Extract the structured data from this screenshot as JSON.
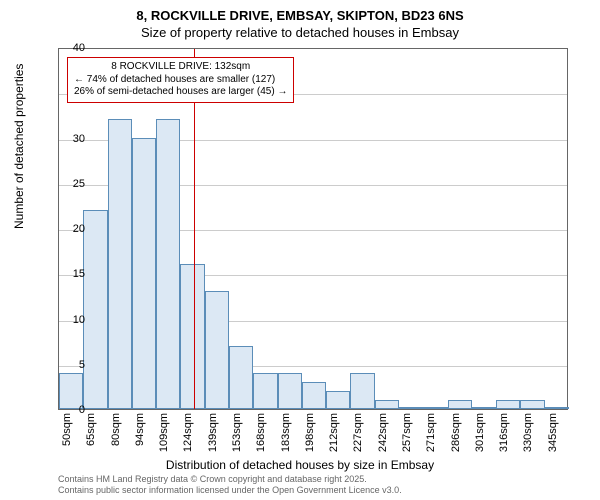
{
  "title_line1": "8, ROCKVILLE DRIVE, EMBSAY, SKIPTON, BD23 6NS",
  "title_line2": "Size of property relative to detached houses in Embsay",
  "ylabel": "Number of detached properties",
  "xlabel": "Distribution of detached houses by size in Embsay",
  "chart": {
    "type": "histogram",
    "ylim": [
      0,
      40
    ],
    "yticks": [
      0,
      5,
      10,
      15,
      20,
      25,
      30,
      35,
      40
    ],
    "xticks": [
      "50sqm",
      "65sqm",
      "80sqm",
      "94sqm",
      "109sqm",
      "124sqm",
      "139sqm",
      "153sqm",
      "168sqm",
      "183sqm",
      "198sqm",
      "212sqm",
      "227sqm",
      "242sqm",
      "257sqm",
      "271sqm",
      "286sqm",
      "301sqm",
      "316sqm",
      "330sqm",
      "345sqm"
    ],
    "values": [
      4,
      22,
      32,
      30,
      32,
      16,
      13,
      7,
      4,
      4,
      3,
      2,
      4,
      1,
      0,
      0,
      1,
      0,
      1,
      1,
      0
    ],
    "bar_fill": "#dce8f4",
    "bar_border": "#5b8db8",
    "grid_color": "#cccccc",
    "bg": "#ffffff",
    "border": "#666666",
    "marker_value": 132,
    "marker_color": "#cc0000",
    "bar_count": 21,
    "x_min": 50,
    "x_max": 360
  },
  "annotation": {
    "line1": "8 ROCKVILLE DRIVE: 132sqm",
    "line2": "← 74% of detached houses are smaller (127)",
    "line3": "26% of semi-detached houses are larger (45) →"
  },
  "footer": {
    "line1": "Contains HM Land Registry data © Crown copyright and database right 2025.",
    "line2": "Contains public sector information licensed under the Open Government Licence v3.0."
  },
  "fontsize": {
    "title": 13,
    "label": 12,
    "tick": 11,
    "ann": 10,
    "footer": 9
  }
}
